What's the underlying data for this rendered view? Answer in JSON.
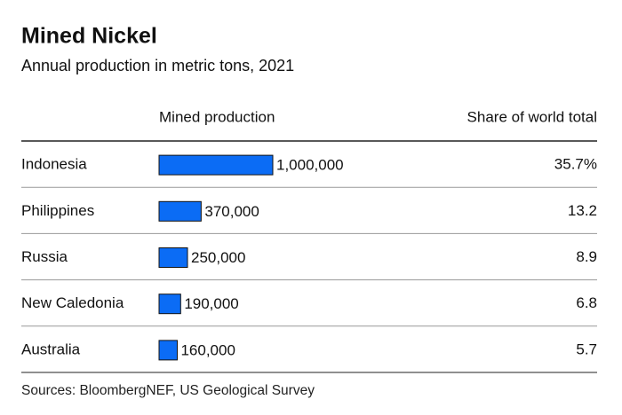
{
  "chart_data": {
    "type": "bar",
    "orientation": "horizontal",
    "title": "Mined Nickel",
    "subtitle": "Annual production in metric tons, 2021",
    "column_headers": [
      "Mined production",
      "Share of world total"
    ],
    "categories": [
      "Indonesia",
      "Philippines",
      "Russia",
      "New Caledonia",
      "Australia"
    ],
    "values": [
      1000000,
      370000,
      250000,
      190000,
      160000
    ],
    "value_labels": [
      "1,000,000",
      "370,000",
      "250,000",
      "190,000",
      "160,000"
    ],
    "share_values": [
      35.7,
      13.2,
      8.9,
      6.8,
      5.7
    ],
    "share_labels": [
      "35.7%",
      "13.2",
      "8.9",
      "6.8",
      "5.7"
    ],
    "color": "#0b6cf5",
    "source": "Sources: BloombergNEF, US Geological Survey"
  }
}
